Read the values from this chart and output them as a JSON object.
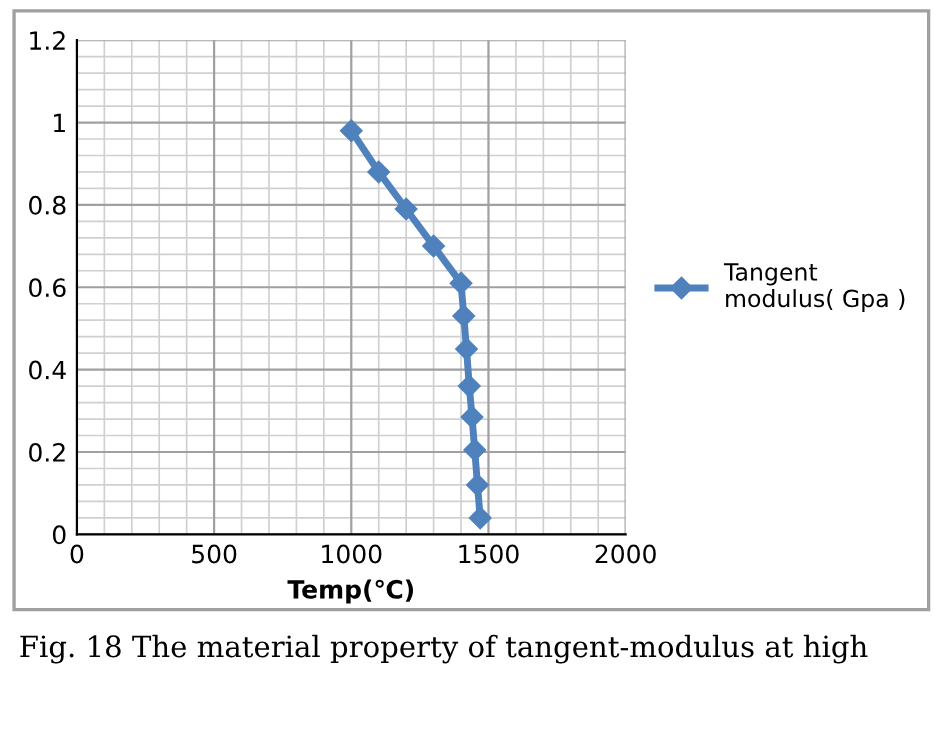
{
  "chart_data": {
    "type": "line",
    "xlabel": "Temp(℃)",
    "series": [
      {
        "name": "Tangent\nmodulus( Gpa )",
        "color": "#4f81bd",
        "x": [
          1000,
          1100,
          1200,
          1300,
          1400,
          1410,
          1420,
          1430,
          1440,
          1450,
          1460,
          1470
        ],
        "values": [
          0.98,
          0.88,
          0.79,
          0.7,
          0.61,
          0.53,
          0.45,
          0.36,
          0.285,
          0.205,
          0.12,
          0.04
        ]
      }
    ],
    "xlim": [
      0,
      2000
    ],
    "xticks": [
      0,
      500,
      1000,
      1500,
      2000
    ],
    "ylim": [
      0,
      1.2
    ],
    "yticks": [
      0,
      0.2,
      0.4,
      0.6,
      0.8,
      1,
      1.2
    ],
    "grid": true,
    "legend": "right",
    "marker": "diamond",
    "line_style": "solid",
    "annotations": [
      "Fig. 18 The material property of tangent-modulus at high"
    ]
  }
}
